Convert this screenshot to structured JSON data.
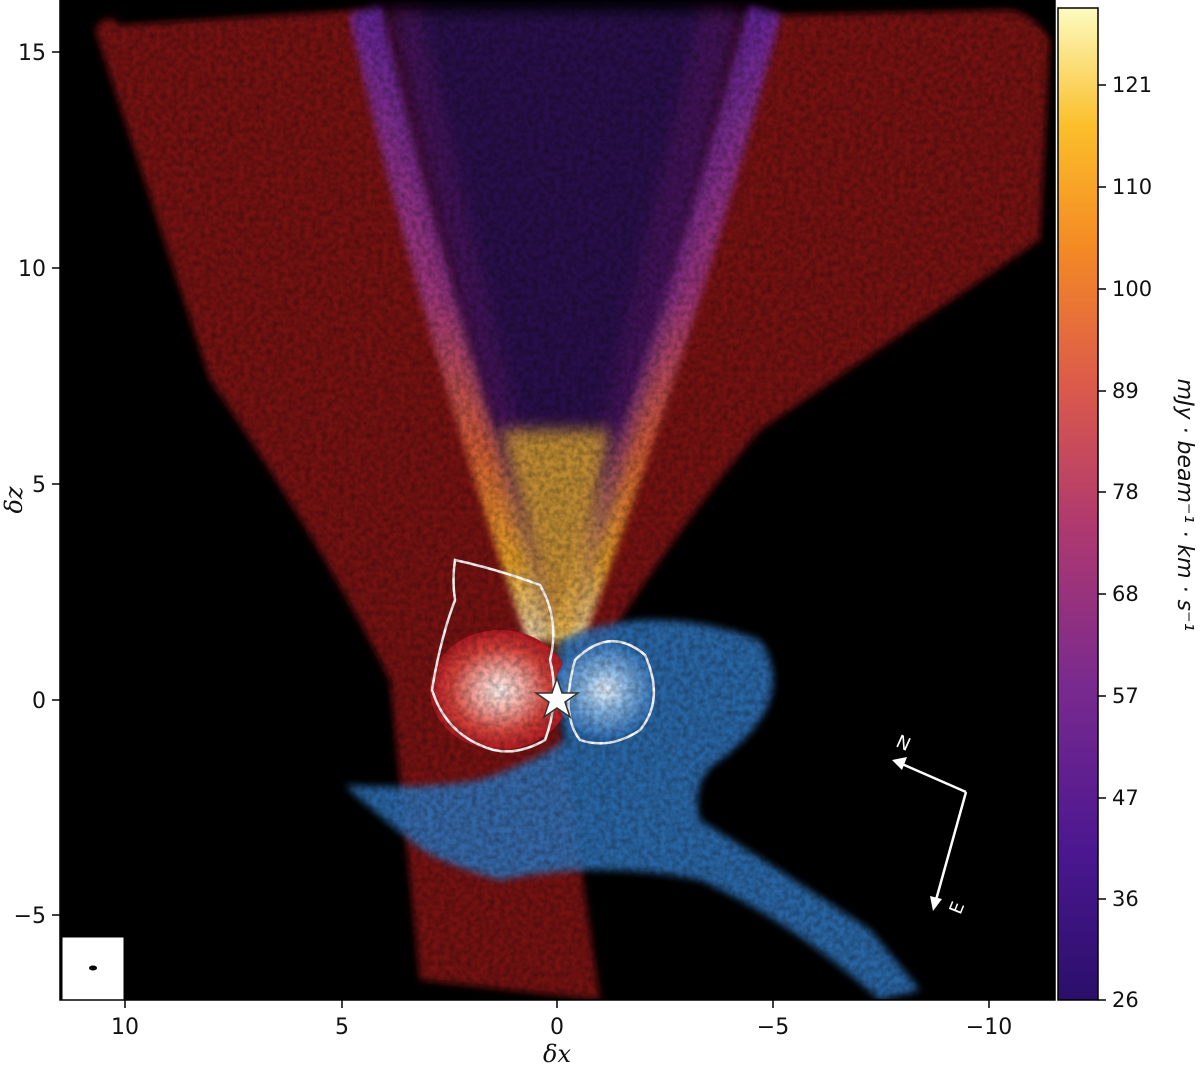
{
  "figure": {
    "x_axis_label": "δx",
    "y_axis_label": "δz",
    "x_ticks": [
      "10",
      "5",
      "0",
      "−5",
      "−10"
    ],
    "y_ticks": [
      "15",
      "10",
      "5",
      "0",
      "−5"
    ],
    "colorbar": {
      "unit": "mJy · beam⁻¹ · km · s⁻¹",
      "ticks": [
        "121",
        "110",
        "100",
        "89",
        "78",
        "68",
        "57",
        "47",
        "36",
        "26"
      ],
      "range": [
        26,
        128
      ]
    },
    "compass": {
      "north": "N",
      "east": "E"
    },
    "colors": {
      "background": "#000000",
      "red_emission": "#b01a22",
      "blue_emission": "#2f6fb5",
      "contour": "#ffffff"
    }
  }
}
